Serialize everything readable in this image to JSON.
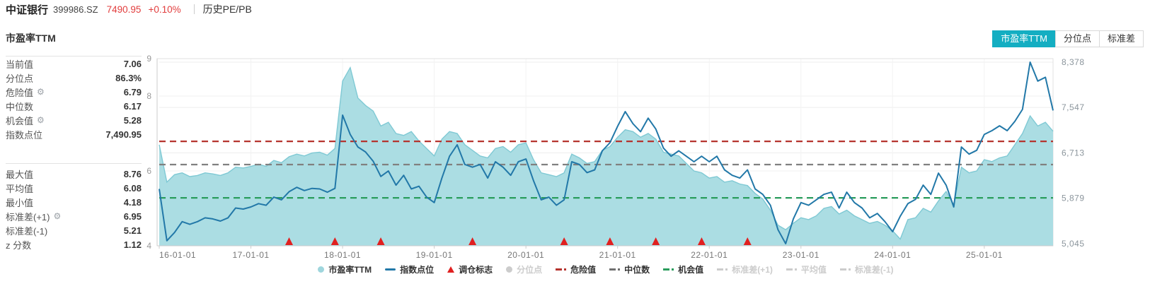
{
  "header": {
    "name": "中证银行",
    "code": "399986.SZ",
    "price": "7490.95",
    "change": "+0.10%",
    "menu": "历史PE/PB"
  },
  "tabs": [
    {
      "label": "市盈率TTM",
      "active": true
    },
    {
      "label": "分位点",
      "active": false
    },
    {
      "label": "标准差",
      "active": false
    }
  ],
  "panel": {
    "title": "市盈率TTM",
    "stats_top": [
      {
        "label": "当前值",
        "value": "7.06",
        "gear": false
      },
      {
        "label": "分位点",
        "value": "86.3%",
        "gear": false
      },
      {
        "label": "危险值",
        "value": "6.79",
        "gear": true
      },
      {
        "label": "中位数",
        "value": "6.17",
        "gear": false
      },
      {
        "label": "机会值",
        "value": "5.28",
        "gear": true
      },
      {
        "label": "指数点位",
        "value": "7,490.95",
        "gear": false
      }
    ],
    "stats_bottom": [
      {
        "label": "最大值",
        "value": "8.76",
        "gear": false
      },
      {
        "label": "平均值",
        "value": "6.08",
        "gear": false
      },
      {
        "label": "最小值",
        "value": "4.18",
        "gear": false
      },
      {
        "label": "标准差(+1)",
        "value": "6.95",
        "gear": true
      },
      {
        "label": "标准差(-1)",
        "value": "5.21",
        "gear": false
      },
      {
        "label": "z 分数",
        "value": "1.12",
        "gear": false
      }
    ]
  },
  "colors": {
    "accent": "#14aec2",
    "area_fill": "#abdde3",
    "area_stroke": "#7fc9d4",
    "index_line": "#2278a8",
    "danger": "#b5332e",
    "median": "#808080",
    "chance": "#2a9d5c",
    "triangle": "#e02020",
    "price_red": "#e23d3d",
    "disabled": "#cccccc"
  },
  "chart_data": {
    "type": "area",
    "x_start": "2016-01",
    "x_end": "2025-10",
    "x_ticks": [
      "16-01-01",
      "17-01-01",
      "18-01-01",
      "19-01-01",
      "20-01-01",
      "21-01-01",
      "22-01-01",
      "23-01-01",
      "24-01-01",
      "25-01-01"
    ],
    "left_axis": {
      "min": 4,
      "max": 9,
      "labels": [
        9,
        8,
        6,
        4
      ]
    },
    "right_axis": {
      "min": 5045,
      "max": 8378,
      "values": [
        8378,
        7547,
        6713,
        5879,
        5045
      ],
      "labels": [
        "8,378",
        "7,547",
        "6,713",
        "5,879",
        "5,045"
      ]
    },
    "series": [
      {
        "name": "市盈率TTM",
        "type": "area",
        "axis": "left",
        "values": [
          6.7,
          5.7,
          5.9,
          5.95,
          5.85,
          5.88,
          5.95,
          5.92,
          5.88,
          5.95,
          6.1,
          6.08,
          6.12,
          6.18,
          6.12,
          6.28,
          6.22,
          6.38,
          6.45,
          6.4,
          6.48,
          6.5,
          6.42,
          6.6,
          8.4,
          8.76,
          7.95,
          7.75,
          7.6,
          7.2,
          7.3,
          7.0,
          6.95,
          7.05,
          6.8,
          6.6,
          6.4,
          6.85,
          7.05,
          7.0,
          6.7,
          6.55,
          6.4,
          6.35,
          6.6,
          6.65,
          6.5,
          6.7,
          6.75,
          6.3,
          5.95,
          5.9,
          5.85,
          5.95,
          6.45,
          6.35,
          6.2,
          6.25,
          6.55,
          6.65,
          6.9,
          7.1,
          7.05,
          6.9,
          7.0,
          6.85,
          6.5,
          6.45,
          6.4,
          6.2,
          6.0,
          5.95,
          5.81,
          5.85,
          5.7,
          5.74,
          5.65,
          5.61,
          5.4,
          5.25,
          4.95,
          4.55,
          4.43,
          4.6,
          4.75,
          4.7,
          4.8,
          5.0,
          5.05,
          4.85,
          4.95,
          4.8,
          4.7,
          4.6,
          4.65,
          4.55,
          4.4,
          4.18,
          4.7,
          4.75,
          5.0,
          4.9,
          5.2,
          5.45,
          5.1,
          6.1,
          5.95,
          6.0,
          6.3,
          6.25,
          6.35,
          6.4,
          6.7,
          7.0,
          7.47,
          7.2,
          7.3,
          7.06
        ]
      },
      {
        "name": "指数点位",
        "type": "line",
        "axis": "right",
        "values": [
          6050,
          5100,
          5250,
          5450,
          5400,
          5450,
          5520,
          5500,
          5460,
          5520,
          5700,
          5680,
          5720,
          5780,
          5750,
          5900,
          5850,
          6000,
          6080,
          6020,
          6060,
          6050,
          5990,
          6060,
          7405,
          7050,
          6820,
          6730,
          6560,
          6280,
          6380,
          6120,
          6300,
          6050,
          6100,
          5900,
          5800,
          6250,
          6650,
          6860,
          6500,
          6450,
          6500,
          6250,
          6550,
          6450,
          6300,
          6550,
          6600,
          6200,
          5850,
          5900,
          5750,
          5850,
          6550,
          6500,
          6350,
          6400,
          6750,
          6900,
          7200,
          7470,
          7250,
          7100,
          7350,
          7150,
          6800,
          6650,
          6750,
          6650,
          6550,
          6650,
          6550,
          6650,
          6400,
          6300,
          6250,
          6400,
          6050,
          5950,
          5750,
          5300,
          5045,
          5500,
          5800,
          5750,
          5850,
          5950,
          5990,
          5700,
          5990,
          5800,
          5700,
          5520,
          5600,
          5450,
          5265,
          5550,
          5780,
          5860,
          6120,
          5950,
          6340,
          6120,
          5720,
          6820,
          6690,
          6760,
          7050,
          7120,
          7210,
          7120,
          7290,
          7510,
          8378,
          8030,
          8100,
          7491
        ]
      }
    ],
    "reference_lines": [
      {
        "name": "危险值",
        "value": 6.79,
        "color": "#b5332e"
      },
      {
        "name": "中位数",
        "value": 6.17,
        "color": "#808080"
      },
      {
        "name": "机会值",
        "value": 5.28,
        "color": "#2a9d5c"
      }
    ],
    "markers": {
      "name": "调仓标志",
      "dates": [
        "2017-06",
        "2017-12",
        "2018-06",
        "2019-06",
        "2020-06",
        "2020-12",
        "2021-06",
        "2021-12",
        "2022-06"
      ]
    },
    "legend": [
      {
        "label": "市盈率TTM",
        "marker": "circle",
        "color": "#9fd6dd",
        "enabled": true
      },
      {
        "label": "指数点位",
        "marker": "line",
        "color": "#2278a8",
        "enabled": true
      },
      {
        "label": "调仓标志",
        "marker": "triangle",
        "color": "#e02020",
        "enabled": true
      },
      {
        "label": "分位点",
        "marker": "circle",
        "color": "#cccccc",
        "enabled": false
      },
      {
        "label": "危险值",
        "marker": "dashdot",
        "color": "#b5332e",
        "enabled": true
      },
      {
        "label": "中位数",
        "marker": "dashdot",
        "color": "#707070",
        "enabled": true
      },
      {
        "label": "机会值",
        "marker": "dashdot",
        "color": "#2a9d5c",
        "enabled": true
      },
      {
        "label": "标准差(+1)",
        "marker": "dashdot",
        "color": "#cccccc",
        "enabled": false
      },
      {
        "label": "平均值",
        "marker": "dashdot",
        "color": "#cccccc",
        "enabled": false
      },
      {
        "label": "标准差(-1)",
        "marker": "dashdot",
        "color": "#cccccc",
        "enabled": false
      }
    ]
  }
}
